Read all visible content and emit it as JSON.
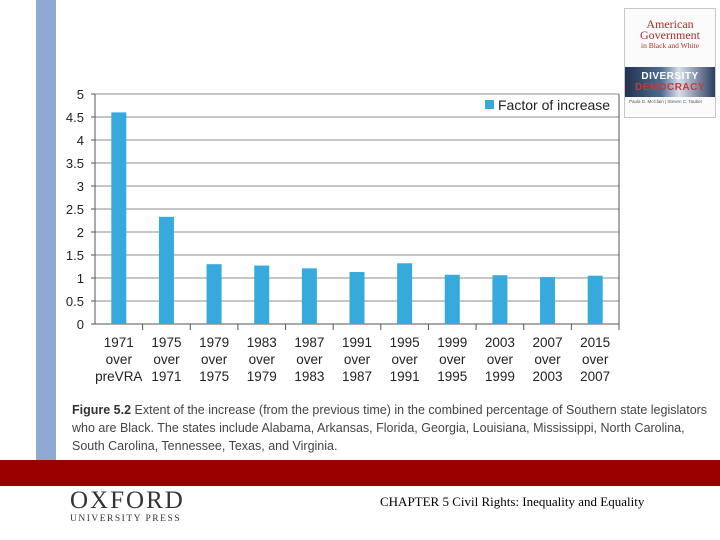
{
  "book": {
    "title_line1": "American",
    "title_line2": "Government",
    "title_line3": "in Black and White",
    "subtitle_line1": "DIVERSITY",
    "subtitle_line2": "DEMOCRACY",
    "authors": "Paula D. McClain | Steven C. Tauber"
  },
  "chart_data": {
    "type": "bar",
    "categories": [
      [
        "1971",
        "over",
        "preVRA"
      ],
      [
        "1975",
        "over",
        "1971"
      ],
      [
        "1979",
        "over",
        "1975"
      ],
      [
        "1983",
        "over",
        "1979"
      ],
      [
        "1987",
        "over",
        "1983"
      ],
      [
        "1991",
        "over",
        "1987"
      ],
      [
        "1995",
        "over",
        "1991"
      ],
      [
        "1999",
        "over",
        "1995"
      ],
      [
        "2003",
        "over",
        "1999"
      ],
      [
        "2007",
        "over",
        "2003"
      ],
      [
        "2015",
        "over",
        "2007"
      ]
    ],
    "series": [
      {
        "name": "Factor of increase",
        "values": [
          4.6,
          2.33,
          1.3,
          1.27,
          1.21,
          1.13,
          1.32,
          1.07,
          1.06,
          1.02,
          1.05
        ],
        "color": "#36a9dd"
      }
    ],
    "ylim": [
      0,
      5
    ],
    "yticks": [
      "0",
      "0.5",
      "1",
      "1.5",
      "2",
      "2.5",
      "3",
      "3.5",
      "4",
      "4.5",
      "5"
    ],
    "grid": true,
    "legend_position": "top-right"
  },
  "caption": {
    "figure_label": "Figure 5.2",
    "text": "Extent of the increase (from the previous time) in the combined percentage of Southern state legislators who are Black. The states include Alabama, Arkansas, Florida, Georgia, Louisiana, Mississippi, North Carolina, South Carolina, Tennessee, Texas, and Virginia."
  },
  "footer": {
    "publisher_main": "OXFORD",
    "publisher_sub": "UNIVERSITY PRESS",
    "chapter_text": "CHAPTER 5 Civil Rights: Inequality and Equality"
  }
}
